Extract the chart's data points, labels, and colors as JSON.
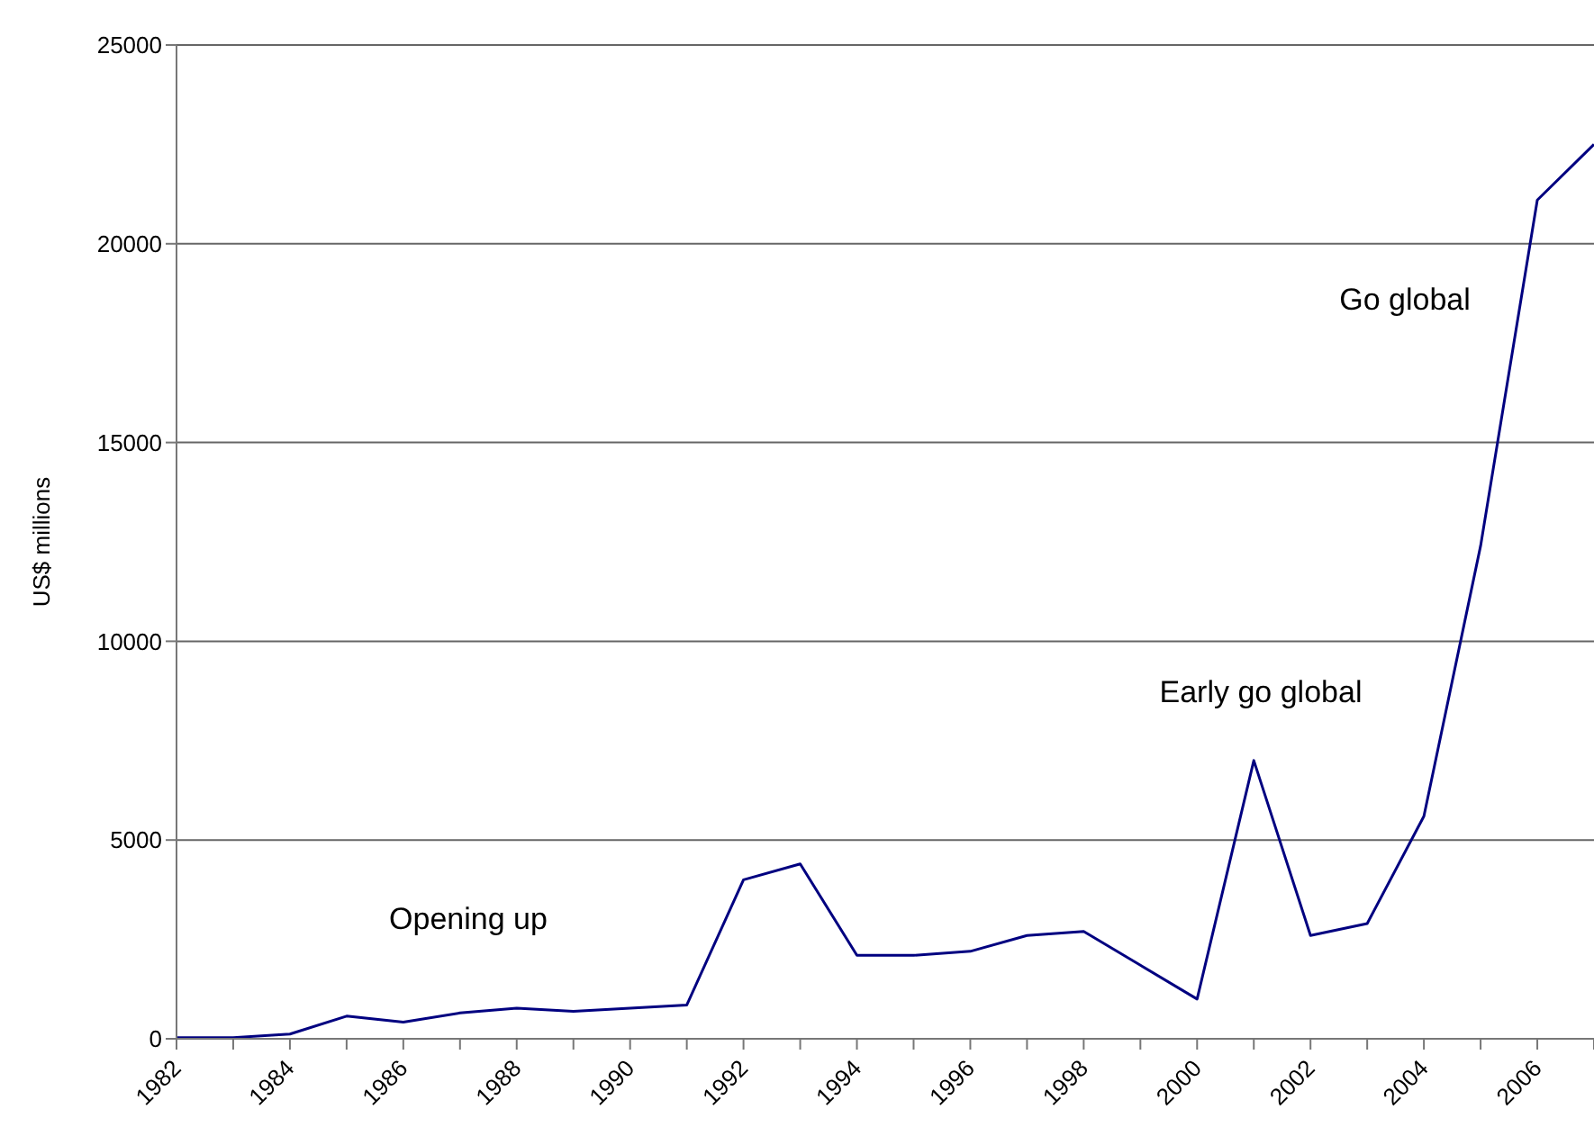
{
  "chart_data": {
    "type": "line",
    "ylabel": "US$ millions",
    "categories": [
      "1982",
      null,
      "1984",
      null,
      "1986",
      null,
      "1988",
      null,
      "1990",
      null,
      "1992",
      null,
      "1994",
      null,
      "1996",
      null,
      "1998",
      null,
      "2000",
      null,
      "2002",
      null,
      "2004",
      null,
      "2006",
      null
    ],
    "series": [
      {
        "color": "#000080",
        "values": [
          30,
          30,
          120,
          570,
          420,
          650,
          770,
          690,
          770,
          850,
          4000,
          4400,
          2100,
          2100,
          2200,
          2600,
          2700,
          1850,
          1000,
          7000,
          2600,
          2900,
          5600,
          12400,
          21100,
          22500
        ]
      }
    ],
    "ylim": [
      0,
      25000
    ],
    "yticks": [
      0,
      5000,
      10000,
      15000,
      20000,
      25000
    ],
    "grid": "y",
    "legend": false,
    "marker": "none",
    "line_style": "solid",
    "annotations": [
      "Opening up",
      "Early go global",
      "Go global"
    ]
  }
}
